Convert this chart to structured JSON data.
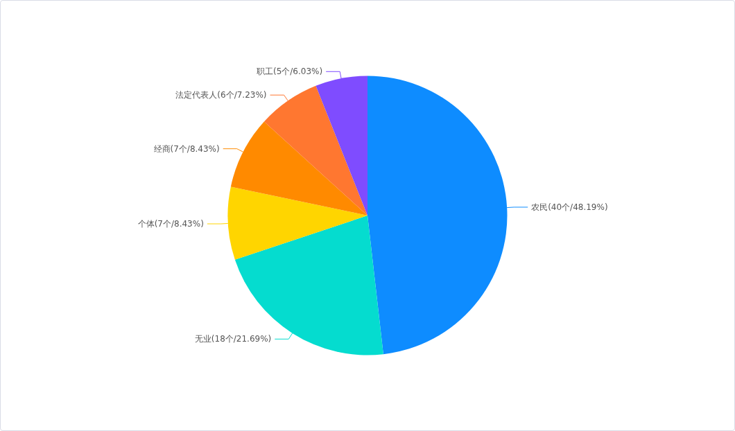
{
  "chart_data": {
    "type": "pie",
    "categories": [
      "农民",
      "无业",
      "个体",
      "经商",
      "法定代表人",
      "职工"
    ],
    "values": [
      48.19,
      21.69,
      8.43,
      8.43,
      7.23,
      6.03
    ],
    "value_labels": [
      "(40个/48.19%)",
      "(18个/21.69%)",
      "(7个/8.43%)",
      "(7个/8.43%)",
      "(6个/7.23%)",
      "(5个/6.03%)"
    ],
    "colors": [
      "#0e8cff",
      "#05dccf",
      "#ffd500",
      "#ff8a00",
      "#ff7730",
      "#7f4cff"
    ],
    "legend": false
  }
}
